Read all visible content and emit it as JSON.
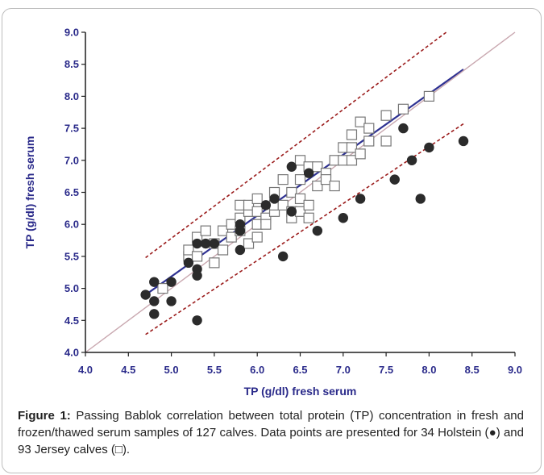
{
  "chart_data": {
    "type": "scatter",
    "xlabel": "TP (g/dl) fresh serum",
    "ylabel": "TP (g/dl) fresh serum",
    "xlim": [
      4.0,
      9.0
    ],
    "ylim": [
      4.0,
      9.0
    ],
    "xticks": [
      "4.0",
      "4.5",
      "5.0",
      "5.5",
      "6.0",
      "6.5",
      "7.0",
      "7.5",
      "8.0",
      "8.5",
      "9.0"
    ],
    "yticks": [
      "4.0",
      "4.5",
      "5.0",
      "5.5",
      "6.0",
      "6.5",
      "7.0",
      "7.5",
      "8.0",
      "8.5",
      "9.0"
    ],
    "grid": false,
    "series": [
      {
        "marker": "filled-circle",
        "color": "#2b2b2b",
        "points": [
          [
            4.7,
            4.9
          ],
          [
            4.8,
            5.1
          ],
          [
            4.8,
            4.8
          ],
          [
            4.8,
            4.6
          ],
          [
            5.0,
            5.1
          ],
          [
            5.0,
            4.8
          ],
          [
            5.2,
            5.4
          ],
          [
            5.3,
            5.7
          ],
          [
            5.3,
            5.3
          ],
          [
            5.3,
            5.2
          ],
          [
            5.3,
            4.5
          ],
          [
            5.4,
            5.7
          ],
          [
            5.5,
            5.7
          ],
          [
            5.8,
            6.0
          ],
          [
            5.8,
            5.9
          ],
          [
            5.8,
            5.6
          ],
          [
            6.1,
            6.3
          ],
          [
            6.2,
            6.4
          ],
          [
            6.3,
            5.5
          ],
          [
            6.4,
            6.9
          ],
          [
            6.4,
            6.2
          ],
          [
            6.6,
            6.8
          ],
          [
            6.7,
            5.9
          ],
          [
            7.0,
            6.1
          ],
          [
            7.2,
            6.4
          ],
          [
            7.6,
            6.7
          ],
          [
            7.7,
            7.5
          ],
          [
            7.8,
            7.0
          ],
          [
            7.9,
            6.4
          ],
          [
            8.0,
            7.2
          ],
          [
            8.4,
            7.3
          ]
        ]
      },
      {
        "marker": "open-square",
        "color": "#777777",
        "points": [
          [
            4.9,
            5.0
          ],
          [
            5.2,
            5.5
          ],
          [
            5.2,
            5.6
          ],
          [
            5.3,
            5.8
          ],
          [
            5.3,
            5.5
          ],
          [
            5.4,
            5.9
          ],
          [
            5.5,
            5.4
          ],
          [
            5.5,
            5.7
          ],
          [
            5.6,
            5.6
          ],
          [
            5.6,
            5.9
          ],
          [
            5.7,
            6.0
          ],
          [
            5.7,
            5.8
          ],
          [
            5.8,
            6.1
          ],
          [
            5.8,
            6.3
          ],
          [
            5.8,
            5.9
          ],
          [
            5.9,
            6.2
          ],
          [
            5.9,
            5.7
          ],
          [
            5.9,
            6.3
          ],
          [
            6.0,
            6.4
          ],
          [
            6.0,
            6.0
          ],
          [
            6.0,
            5.8
          ],
          [
            6.0,
            6.2
          ],
          [
            6.1,
            6.1
          ],
          [
            6.1,
            6.0
          ],
          [
            6.2,
            6.5
          ],
          [
            6.2,
            6.2
          ],
          [
            6.2,
            6.3
          ],
          [
            6.3,
            6.7
          ],
          [
            6.3,
            6.3
          ],
          [
            6.4,
            6.5
          ],
          [
            6.4,
            6.2
          ],
          [
            6.4,
            6.1
          ],
          [
            6.5,
            7.0
          ],
          [
            6.5,
            6.7
          ],
          [
            6.5,
            6.4
          ],
          [
            6.5,
            6.2
          ],
          [
            6.6,
            6.9
          ],
          [
            6.6,
            6.3
          ],
          [
            6.6,
            6.1
          ],
          [
            6.7,
            6.9
          ],
          [
            6.7,
            6.6
          ],
          [
            6.8,
            6.8
          ],
          [
            6.8,
            6.7
          ],
          [
            6.9,
            7.0
          ],
          [
            6.9,
            6.6
          ],
          [
            7.0,
            7.2
          ],
          [
            7.0,
            7.0
          ],
          [
            7.1,
            7.4
          ],
          [
            7.1,
            7.0
          ],
          [
            7.1,
            7.2
          ],
          [
            7.2,
            7.6
          ],
          [
            7.2,
            7.1
          ],
          [
            7.3,
            7.5
          ],
          [
            7.3,
            7.3
          ],
          [
            7.5,
            7.7
          ],
          [
            7.5,
            7.3
          ],
          [
            7.7,
            7.8
          ],
          [
            8.0,
            8.0
          ]
        ]
      }
    ],
    "lines": [
      {
        "kind": "regression",
        "color": "#2e3192",
        "from": [
          4.7,
          4.9
        ],
        "to": [
          8.4,
          8.42
        ]
      },
      {
        "kind": "identity",
        "color": "#c9a8b0",
        "from": [
          4.0,
          4.0
        ],
        "to": [
          9.0,
          9.0
        ]
      },
      {
        "kind": "upper-ci",
        "color": "#9b1c1c",
        "dashed": true,
        "from": [
          4.7,
          5.48
        ],
        "to": [
          8.2,
          9.0
        ]
      },
      {
        "kind": "lower-ci",
        "color": "#9b1c1c",
        "dashed": true,
        "from": [
          4.7,
          4.28
        ],
        "to": [
          8.4,
          7.57
        ]
      }
    ]
  },
  "caption": {
    "label": "Figure 1:",
    "text": " Passing Bablok correlation between total protein (TP) concentration in fresh and frozen/thawed serum samples of 127 calves. Data points are presented for 34 Holstein (●) and 93 Jersey calves (□)."
  }
}
